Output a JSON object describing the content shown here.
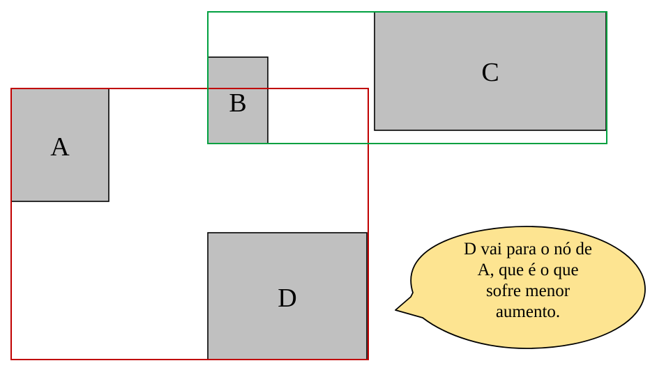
{
  "diagram": {
    "rectangles": [
      {
        "id": "A",
        "label": "A"
      },
      {
        "id": "B",
        "label": "B"
      },
      {
        "id": "C",
        "label": "C"
      },
      {
        "id": "D",
        "label": "D"
      }
    ],
    "callout": {
      "lines": [
        "D vai para o nó de",
        "A, que é o que",
        "sofre menor",
        "aumento."
      ]
    }
  },
  "colors": {
    "rect_fill": "#c0c0c0",
    "rect_stroke": "#000000",
    "red_box": "#c00000",
    "green_box": "#00a040",
    "callout_fill": "#fde491",
    "callout_stroke": "#000000"
  }
}
